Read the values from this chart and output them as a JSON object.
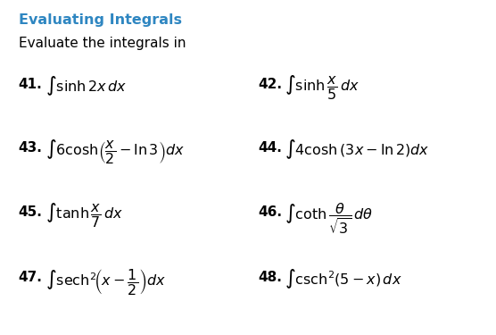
{
  "title": "Evaluating Integrals",
  "subtitle": "Evaluate the integrals in",
  "title_color": "#2E86C1",
  "text_color": "#000000",
  "background_color": "#ffffff",
  "items": [
    {
      "num": "41.",
      "expr": "$\\int \\sinh 2x\\, dx$",
      "col": 0,
      "row": 0
    },
    {
      "num": "42.",
      "expr": "$\\int \\sinh \\dfrac{x}{5}\\, dx$",
      "col": 1,
      "row": 0
    },
    {
      "num": "43.",
      "expr": "$\\int 6\\cosh\\!\\left(\\dfrac{x}{2} - \\ln 3\\right)dx$",
      "col": 0,
      "row": 1
    },
    {
      "num": "44.",
      "expr": "$\\int 4\\cosh\\left(3x - \\ln 2\\right)dx$",
      "col": 1,
      "row": 1
    },
    {
      "num": "45.",
      "expr": "$\\int \\tanh \\dfrac{x}{7}\\, dx$",
      "col": 0,
      "row": 2
    },
    {
      "num": "46.",
      "expr": "$\\int \\coth \\dfrac{\\theta}{\\sqrt{3}}\\, d\\theta$",
      "col": 1,
      "row": 2
    },
    {
      "num": "47.",
      "expr": "$\\int \\mathrm{sech}^{2}\\!\\left(x - \\dfrac{1}{2}\\right)dx$",
      "col": 0,
      "row": 3
    },
    {
      "num": "48.",
      "expr": "$\\int \\mathrm{csch}^{2}(5 - x)\\, dx$",
      "col": 1,
      "row": 3
    }
  ]
}
